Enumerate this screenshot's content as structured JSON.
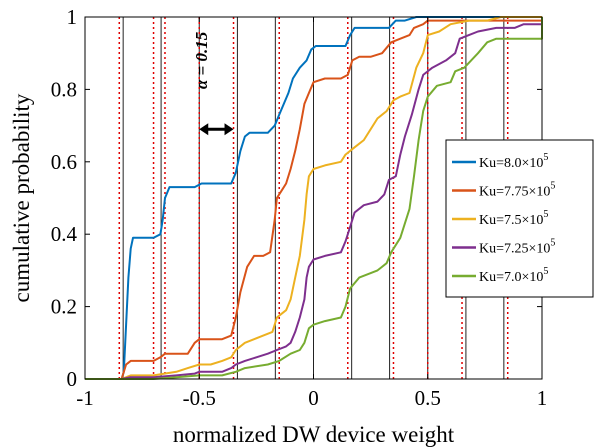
{
  "chart_data": {
    "type": "line",
    "xlabel": "normalized DW device weight",
    "ylabel": "cumulative probability",
    "xlim": [
      -1,
      1
    ],
    "ylim": [
      0,
      1
    ],
    "x_ticks": [
      "-1",
      "-0.5",
      "0",
      "0.5",
      "1"
    ],
    "y_ticks": [
      "0",
      "0.2",
      "0.4",
      "0.6",
      "0.8",
      "1"
    ],
    "grid": false,
    "legend_position": "right",
    "vertical_lines": {
      "solid": [
        -0.833,
        -0.667,
        -0.5,
        -0.333,
        -0.167,
        0,
        0.167,
        0.333,
        0.5,
        0.667,
        0.833
      ],
      "dotted_red": [
        -0.85,
        -0.7,
        -0.65,
        -0.5,
        -0.35,
        -0.15,
        0.15,
        0.35,
        0.5,
        0.65,
        0.85
      ]
    },
    "annotation": {
      "text": "α = 0.15",
      "arrow_x": [
        -0.5,
        -0.35
      ],
      "arrow_y": 0.69,
      "text_x": -0.465,
      "text_y": 0.88
    },
    "series": [
      {
        "name": "Ku=8.0×10",
        "exponent": "5",
        "color": "#0072BD",
        "points": [
          [
            -1,
            0
          ],
          [
            -0.84,
            0
          ],
          [
            -0.83,
            0.02
          ],
          [
            -0.82,
            0.15
          ],
          [
            -0.81,
            0.28
          ],
          [
            -0.8,
            0.36
          ],
          [
            -0.79,
            0.39
          ],
          [
            -0.7,
            0.39
          ],
          [
            -0.67,
            0.4
          ],
          [
            -0.66,
            0.44
          ],
          [
            -0.65,
            0.5
          ],
          [
            -0.63,
            0.53
          ],
          [
            -0.58,
            0.53
          ],
          [
            -0.55,
            0.53
          ],
          [
            -0.52,
            0.53
          ],
          [
            -0.49,
            0.54
          ],
          [
            -0.4,
            0.54
          ],
          [
            -0.36,
            0.54
          ],
          [
            -0.34,
            0.57
          ],
          [
            -0.32,
            0.63
          ],
          [
            -0.3,
            0.67
          ],
          [
            -0.28,
            0.68
          ],
          [
            -0.2,
            0.68
          ],
          [
            -0.17,
            0.7
          ],
          [
            -0.15,
            0.73
          ],
          [
            -0.13,
            0.76
          ],
          [
            -0.11,
            0.79
          ],
          [
            -0.09,
            0.83
          ],
          [
            -0.06,
            0.86
          ],
          [
            -0.03,
            0.88
          ],
          [
            -0.01,
            0.91
          ],
          [
            0.01,
            0.92
          ],
          [
            0.08,
            0.92
          ],
          [
            0.14,
            0.92
          ],
          [
            0.16,
            0.95
          ],
          [
            0.18,
            0.97
          ],
          [
            0.33,
            0.97
          ],
          [
            0.36,
            0.99
          ],
          [
            0.4,
            0.99
          ],
          [
            0.45,
            1
          ],
          [
            1,
            1
          ]
        ]
      },
      {
        "name": "Ku=7.75×10",
        "exponent": "5",
        "color": "#D95319",
        "points": [
          [
            -1,
            0
          ],
          [
            -0.84,
            0
          ],
          [
            -0.82,
            0.04
          ],
          [
            -0.8,
            0.05
          ],
          [
            -0.7,
            0.05
          ],
          [
            -0.67,
            0.06
          ],
          [
            -0.65,
            0.07
          ],
          [
            -0.6,
            0.07
          ],
          [
            -0.55,
            0.07
          ],
          [
            -0.52,
            0.1
          ],
          [
            -0.5,
            0.11
          ],
          [
            -0.4,
            0.11
          ],
          [
            -0.36,
            0.12
          ],
          [
            -0.34,
            0.17
          ],
          [
            -0.32,
            0.24
          ],
          [
            -0.29,
            0.31
          ],
          [
            -0.26,
            0.34
          ],
          [
            -0.22,
            0.34
          ],
          [
            -0.19,
            0.35
          ],
          [
            -0.17,
            0.44
          ],
          [
            -0.16,
            0.5
          ],
          [
            -0.14,
            0.52
          ],
          [
            -0.12,
            0.54
          ],
          [
            -0.1,
            0.58
          ],
          [
            -0.08,
            0.63
          ],
          [
            -0.06,
            0.69
          ],
          [
            -0.04,
            0.76
          ],
          [
            -0.02,
            0.79
          ],
          [
            0,
            0.82
          ],
          [
            0.05,
            0.83
          ],
          [
            0.12,
            0.83
          ],
          [
            0.15,
            0.84
          ],
          [
            0.17,
            0.88
          ],
          [
            0.2,
            0.89
          ],
          [
            0.25,
            0.89
          ],
          [
            0.3,
            0.9
          ],
          [
            0.34,
            0.93
          ],
          [
            0.38,
            0.94
          ],
          [
            0.42,
            0.95
          ],
          [
            0.44,
            0.97
          ],
          [
            0.48,
            0.98
          ],
          [
            0.5,
            0.99
          ],
          [
            1,
            0.99
          ],
          [
            1,
            1
          ]
        ]
      },
      {
        "name": "Ku=7.5×10",
        "exponent": "5",
        "color": "#EDB120",
        "points": [
          [
            -1,
            0
          ],
          [
            -0.84,
            0
          ],
          [
            -0.8,
            0.01
          ],
          [
            -0.7,
            0.01
          ],
          [
            -0.6,
            0.02
          ],
          [
            -0.55,
            0.03
          ],
          [
            -0.5,
            0.04
          ],
          [
            -0.45,
            0.04
          ],
          [
            -0.4,
            0.05
          ],
          [
            -0.36,
            0.06
          ],
          [
            -0.34,
            0.08
          ],
          [
            -0.3,
            0.1
          ],
          [
            -0.26,
            0.11
          ],
          [
            -0.22,
            0.12
          ],
          [
            -0.18,
            0.13
          ],
          [
            -0.16,
            0.17
          ],
          [
            -0.14,
            0.18
          ],
          [
            -0.12,
            0.19
          ],
          [
            -0.1,
            0.22
          ],
          [
            -0.08,
            0.28
          ],
          [
            -0.06,
            0.34
          ],
          [
            -0.04,
            0.44
          ],
          [
            -0.03,
            0.51
          ],
          [
            -0.02,
            0.56
          ],
          [
            0,
            0.58
          ],
          [
            0.05,
            0.59
          ],
          [
            0.12,
            0.6
          ],
          [
            0.14,
            0.62
          ],
          [
            0.18,
            0.64
          ],
          [
            0.22,
            0.66
          ],
          [
            0.28,
            0.72
          ],
          [
            0.32,
            0.74
          ],
          [
            0.35,
            0.77
          ],
          [
            0.38,
            0.78
          ],
          [
            0.42,
            0.79
          ],
          [
            0.45,
            0.86
          ],
          [
            0.48,
            0.9
          ],
          [
            0.5,
            0.95
          ],
          [
            0.55,
            0.96
          ],
          [
            0.6,
            0.98
          ],
          [
            0.68,
            0.99
          ],
          [
            0.76,
            0.99
          ],
          [
            0.82,
            1
          ],
          [
            1,
            1
          ]
        ]
      },
      {
        "name": "Ku=7.25×10",
        "exponent": "5",
        "color": "#7E2F8E",
        "points": [
          [
            -1,
            0
          ],
          [
            -0.84,
            0
          ],
          [
            -0.8,
            0.005
          ],
          [
            -0.7,
            0.005
          ],
          [
            -0.6,
            0.01
          ],
          [
            -0.52,
            0.015
          ],
          [
            -0.5,
            0.02
          ],
          [
            -0.4,
            0.02
          ],
          [
            -0.36,
            0.03
          ],
          [
            -0.34,
            0.04
          ],
          [
            -0.3,
            0.05
          ],
          [
            -0.25,
            0.06
          ],
          [
            -0.2,
            0.07
          ],
          [
            -0.16,
            0.08
          ],
          [
            -0.12,
            0.09
          ],
          [
            -0.1,
            0.1
          ],
          [
            -0.08,
            0.13
          ],
          [
            -0.06,
            0.17
          ],
          [
            -0.04,
            0.22
          ],
          [
            -0.03,
            0.28
          ],
          [
            -0.02,
            0.31
          ],
          [
            0,
            0.33
          ],
          [
            0.05,
            0.34
          ],
          [
            0.12,
            0.35
          ],
          [
            0.14,
            0.38
          ],
          [
            0.16,
            0.42
          ],
          [
            0.18,
            0.46
          ],
          [
            0.22,
            0.48
          ],
          [
            0.28,
            0.49
          ],
          [
            0.31,
            0.51
          ],
          [
            0.33,
            0.55
          ],
          [
            0.36,
            0.56
          ],
          [
            0.38,
            0.62
          ],
          [
            0.4,
            0.67
          ],
          [
            0.43,
            0.73
          ],
          [
            0.46,
            0.8
          ],
          [
            0.48,
            0.84
          ],
          [
            0.52,
            0.86
          ],
          [
            0.58,
            0.88
          ],
          [
            0.62,
            0.9
          ],
          [
            0.64,
            0.94
          ],
          [
            0.68,
            0.95
          ],
          [
            0.72,
            0.96
          ],
          [
            0.8,
            0.97
          ],
          [
            0.88,
            0.97
          ],
          [
            0.92,
            0.98
          ],
          [
            1,
            0.98
          ],
          [
            1,
            1
          ]
        ]
      },
      {
        "name": "Ku=7.0×10",
        "exponent": "5",
        "color": "#77AC30",
        "points": [
          [
            -1,
            0
          ],
          [
            -0.84,
            0
          ],
          [
            -0.7,
            0
          ],
          [
            -0.6,
            0.005
          ],
          [
            -0.5,
            0.01
          ],
          [
            -0.4,
            0.01
          ],
          [
            -0.34,
            0.02
          ],
          [
            -0.3,
            0.03
          ],
          [
            -0.2,
            0.04
          ],
          [
            -0.15,
            0.05
          ],
          [
            -0.1,
            0.07
          ],
          [
            -0.06,
            0.08
          ],
          [
            -0.04,
            0.1
          ],
          [
            -0.02,
            0.14
          ],
          [
            0,
            0.15
          ],
          [
            0.05,
            0.16
          ],
          [
            0.12,
            0.17
          ],
          [
            0.14,
            0.2
          ],
          [
            0.16,
            0.25
          ],
          [
            0.2,
            0.28
          ],
          [
            0.28,
            0.3
          ],
          [
            0.32,
            0.32
          ],
          [
            0.34,
            0.35
          ],
          [
            0.38,
            0.39
          ],
          [
            0.42,
            0.47
          ],
          [
            0.44,
            0.56
          ],
          [
            0.46,
            0.66
          ],
          [
            0.48,
            0.74
          ],
          [
            0.5,
            0.78
          ],
          [
            0.54,
            0.81
          ],
          [
            0.6,
            0.82
          ],
          [
            0.62,
            0.85
          ],
          [
            0.66,
            0.86
          ],
          [
            0.72,
            0.9
          ],
          [
            0.76,
            0.93
          ],
          [
            0.8,
            0.94
          ],
          [
            0.9,
            0.94
          ],
          [
            1,
            0.94
          ],
          [
            1,
            1
          ]
        ]
      }
    ]
  }
}
